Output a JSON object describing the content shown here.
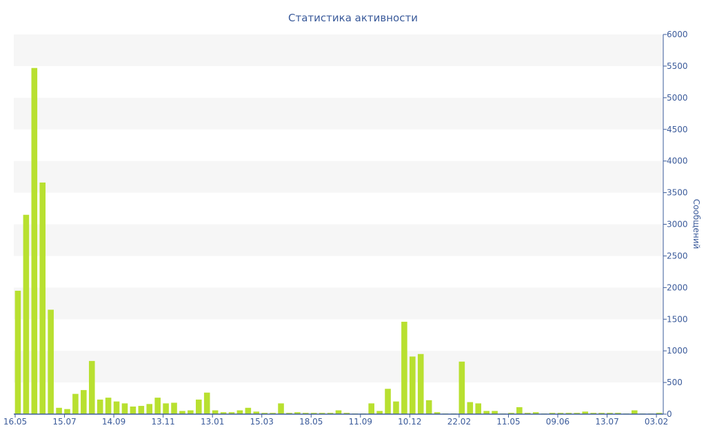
{
  "chart_data": {
    "type": "bar",
    "title": "Статистика активности",
    "xlabel": "",
    "ylabel": "Сообщений",
    "ylim": [
      0,
      6000
    ],
    "yticks": [
      0,
      500,
      1000,
      1500,
      2000,
      2500,
      3000,
      3500,
      4000,
      4500,
      5000,
      5500,
      6000
    ],
    "y_axis_side": "right",
    "grid": "alternating horizontal bands",
    "xtick_labels": [
      {
        "index": 0,
        "label": "16.05"
      },
      {
        "index": 6,
        "label": "15.07"
      },
      {
        "index": 12,
        "label": "14.09"
      },
      {
        "index": 18,
        "label": "13.11"
      },
      {
        "index": 24,
        "label": "13.01"
      },
      {
        "index": 30,
        "label": "15.03"
      },
      {
        "index": 36,
        "label": "18.05"
      },
      {
        "index": 42,
        "label": "11.09"
      },
      {
        "index": 48,
        "label": "10.12"
      },
      {
        "index": 54,
        "label": "22.02"
      },
      {
        "index": 60,
        "label": "11.05"
      },
      {
        "index": 66,
        "label": "09.06"
      },
      {
        "index": 72,
        "label": "13.07"
      },
      {
        "index": 78,
        "label": "03.02"
      }
    ],
    "values": [
      1950,
      3150,
      5470,
      3660,
      1650,
      100,
      80,
      320,
      380,
      840,
      230,
      260,
      200,
      170,
      120,
      130,
      160,
      260,
      170,
      180,
      50,
      60,
      230,
      340,
      60,
      30,
      30,
      60,
      100,
      40,
      20,
      20,
      170,
      20,
      30,
      20,
      20,
      20,
      20,
      60,
      20,
      10,
      10,
      170,
      50,
      400,
      200,
      1460,
      910,
      950,
      220,
      30,
      10,
      10,
      830,
      190,
      170,
      50,
      50,
      10,
      20,
      110,
      20,
      30,
      10,
      20,
      20,
      20,
      20,
      40,
      20,
      20,
      20,
      20,
      10,
      60,
      10,
      10,
      20
    ],
    "colors": {
      "bar": "#b8e030",
      "band": "#f6f6f6",
      "text": "#3a5a9a",
      "axis": "#3a5a9a"
    }
  }
}
